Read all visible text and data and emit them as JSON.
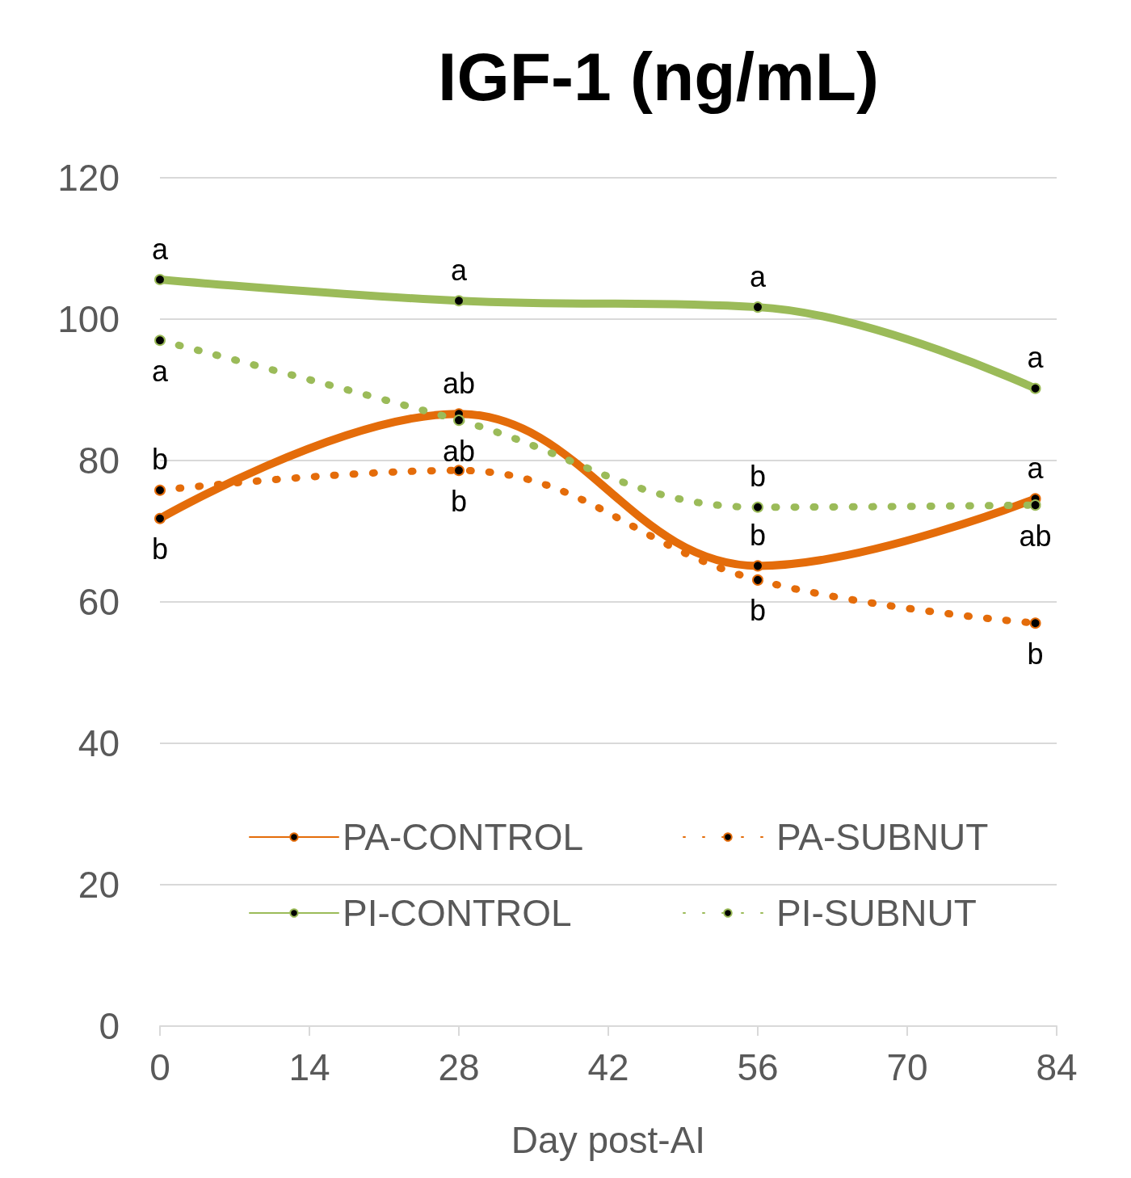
{
  "chart_data": {
    "type": "line",
    "title": "IGF-1 (ng/mL)",
    "xlabel": "Day post-AI",
    "x": [
      0,
      28,
      56,
      82
    ],
    "xlim": [
      0,
      84
    ],
    "xticks": [
      0,
      14,
      28,
      42,
      56,
      70,
      84
    ],
    "ylim": [
      0,
      120
    ],
    "yticks": [
      0,
      20,
      40,
      60,
      80,
      100,
      120
    ],
    "grid": "y",
    "legend": "bottom",
    "marker": "circle",
    "series": [
      {
        "name": "PA-CONTROL",
        "color": "#e46c0a",
        "line_style": "solid",
        "values": [
          71.8,
          86.6,
          65.1,
          74.6
        ]
      },
      {
        "name": "PA-SUBNUT",
        "color": "#e46c0a",
        "line_style": "dotted",
        "values": [
          75.8,
          78.6,
          63.1,
          57.0
        ]
      },
      {
        "name": "PI-CONTROL",
        "color": "#9bbb59",
        "line_style": "solid",
        "values": [
          105.6,
          102.6,
          101.7,
          90.2
        ]
      },
      {
        "name": "PI-SUBNUT",
        "color": "#9bbb59",
        "line_style": "dotted",
        "values": [
          97.0,
          85.7,
          73.4,
          73.7
        ]
      }
    ],
    "annotations": [
      {
        "text": "a",
        "x": 0,
        "y": 105.6
      },
      {
        "text": "a",
        "x": 28,
        "y": 102.6
      },
      {
        "text": "a",
        "x": 56,
        "y": 101.7
      },
      {
        "text": "a",
        "x": 82,
        "y": 90.2
      },
      {
        "text": "a",
        "x": 0,
        "y": 97.0
      },
      {
        "text": "ab",
        "x": 28,
        "y": 86.6
      },
      {
        "text": "ab",
        "x": 28,
        "y": 85.7
      },
      {
        "text": "b",
        "x": 0,
        "y": 75.8
      },
      {
        "text": "b",
        "x": 0,
        "y": 71.8
      },
      {
        "text": "b",
        "x": 28,
        "y": 78.6
      },
      {
        "text": "b",
        "x": 56,
        "y": 73.4
      },
      {
        "text": "a",
        "x": 82,
        "y": 74.6
      },
      {
        "text": "b",
        "x": 56,
        "y": 65.1
      },
      {
        "text": "ab",
        "x": 82,
        "y": 73.7
      },
      {
        "text": "b",
        "x": 56,
        "y": 63.1
      },
      {
        "text": "b",
        "x": 82,
        "y": 57.0
      }
    ]
  }
}
